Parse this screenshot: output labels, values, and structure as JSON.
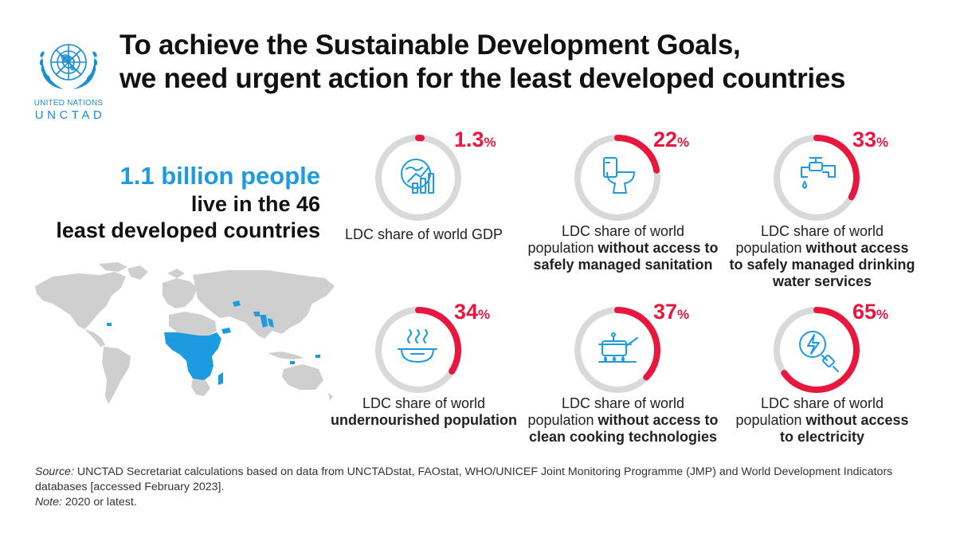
{
  "logo": {
    "line1": "UNITED NATIONS",
    "line2": "UNCTAD",
    "icon": "un-emblem-icon",
    "color": "#1a8fd0"
  },
  "headline": {
    "line1": "To achieve the Sustainable Development Goals,",
    "line2": "we need urgent action for the least developed countries"
  },
  "stat": {
    "highlight": "1.1 billion people",
    "line2": "live in the 46",
    "line3": "least developed countries",
    "accent_color": "#1d9be0"
  },
  "map": {
    "icon": "world-map-icon",
    "land_color": "#cfcfcf",
    "highlight_color": "#1d9be0"
  },
  "colors": {
    "gauge_track": "#d9d9d9",
    "gauge_fill": "#e8173e",
    "icon_stroke": "#1d9be0"
  },
  "metrics": [
    {
      "value": 1.3,
      "value_text": "1.3",
      "unit": "%",
      "icon": "gdp-growth-chart-icon",
      "label": [
        {
          "text": "LDC share of world GDP",
          "bold": false
        }
      ]
    },
    {
      "value": 22,
      "value_text": "22",
      "unit": "%",
      "icon": "toilet-icon",
      "label": [
        {
          "text": "LDC share of world",
          "bold": false
        },
        {
          "text": "population ",
          "bold": false,
          "inline": true
        },
        {
          "text": "without access to",
          "bold": true
        },
        {
          "text": "safely managed sanitation",
          "bold": true
        }
      ]
    },
    {
      "value": 33,
      "value_text": "33",
      "unit": "%",
      "icon": "water-tap-icon",
      "label": [
        {
          "text": "LDC share of world",
          "bold": false
        },
        {
          "text": "population ",
          "bold": false,
          "inline": true
        },
        {
          "text": "without access",
          "bold": true
        },
        {
          "text": "to safely managed drinking",
          "bold": true
        },
        {
          "text": "water services",
          "bold": true
        }
      ]
    },
    {
      "value": 34,
      "value_text": "34",
      "unit": "%",
      "icon": "food-bowl-icon",
      "label": [
        {
          "text": "LDC share of world",
          "bold": false
        },
        {
          "text": "undernourished population",
          "bold": true
        }
      ]
    },
    {
      "value": 37,
      "value_text": "37",
      "unit": "%",
      "icon": "cooking-stove-icon",
      "label": [
        {
          "text": "LDC share of world",
          "bold": false
        },
        {
          "text": "population ",
          "bold": false,
          "inline": true
        },
        {
          "text": "without access to",
          "bold": true
        },
        {
          "text": "clean cooking technologies",
          "bold": true
        }
      ]
    },
    {
      "value": 65,
      "value_text": "65",
      "unit": "%",
      "icon": "electricity-plug-icon",
      "label": [
        {
          "text": "LDC share of world",
          "bold": false
        },
        {
          "text": "population ",
          "bold": false,
          "inline": true
        },
        {
          "text": "without access",
          "bold": true
        },
        {
          "text": "to electricity",
          "bold": true
        }
      ]
    }
  ],
  "source": {
    "source_label": "Source:",
    "source_text": " UNCTAD Secretariat calculations based on data from UNCTADstat, FAOstat, WHO/UNICEF Joint Monitoring Programme (JMP) and World Development Indicators databases [accessed February 2023].",
    "note_label": "Note:",
    "note_text": " 2020 or latest."
  }
}
